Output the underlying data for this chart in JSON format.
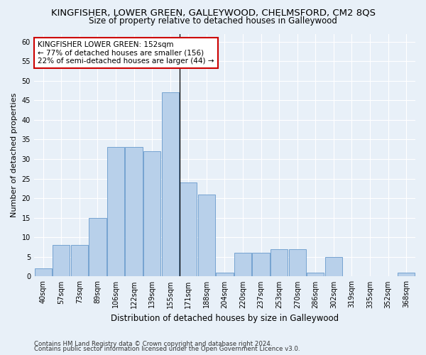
{
  "title": "KINGFISHER, LOWER GREEN, GALLEYWOOD, CHELMSFORD, CM2 8QS",
  "subtitle": "Size of property relative to detached houses in Galleywood",
  "xlabel": "Distribution of detached houses by size in Galleywood",
  "ylabel": "Number of detached properties",
  "bar_labels": [
    "40sqm",
    "57sqm",
    "73sqm",
    "89sqm",
    "106sqm",
    "122sqm",
    "139sqm",
    "155sqm",
    "171sqm",
    "188sqm",
    "204sqm",
    "220sqm",
    "237sqm",
    "253sqm",
    "270sqm",
    "286sqm",
    "302sqm",
    "319sqm",
    "335sqm",
    "352sqm",
    "368sqm"
  ],
  "bar_values": [
    2,
    8,
    8,
    15,
    33,
    33,
    32,
    47,
    24,
    21,
    1,
    6,
    6,
    7,
    7,
    1,
    5,
    0,
    0,
    0,
    1
  ],
  "bar_color": "#b8d0ea",
  "bar_edge_color": "#6699cc",
  "annotation_text": "KINGFISHER LOWER GREEN: 152sqm\n← 77% of detached houses are smaller (156)\n22% of semi-detached houses are larger (44) →",
  "annotation_box_color": "#ffffff",
  "annotation_box_edge_color": "#cc0000",
  "vline_x": 7.5,
  "ylim": [
    0,
    62
  ],
  "yticks": [
    0,
    5,
    10,
    15,
    20,
    25,
    30,
    35,
    40,
    45,
    50,
    55,
    60
  ],
  "footer1": "Contains HM Land Registry data © Crown copyright and database right 2024.",
  "footer2": "Contains public sector information licensed under the Open Government Licence v3.0.",
  "background_color": "#e8f0f8",
  "axes_bg_color": "#e8f0f8",
  "grid_color": "#ffffff",
  "title_fontsize": 9.5,
  "subtitle_fontsize": 8.5,
  "ylabel_fontsize": 8,
  "xlabel_fontsize": 8.5,
  "tick_fontsize": 7,
  "annotation_fontsize": 7.5,
  "footer_fontsize": 6.2
}
